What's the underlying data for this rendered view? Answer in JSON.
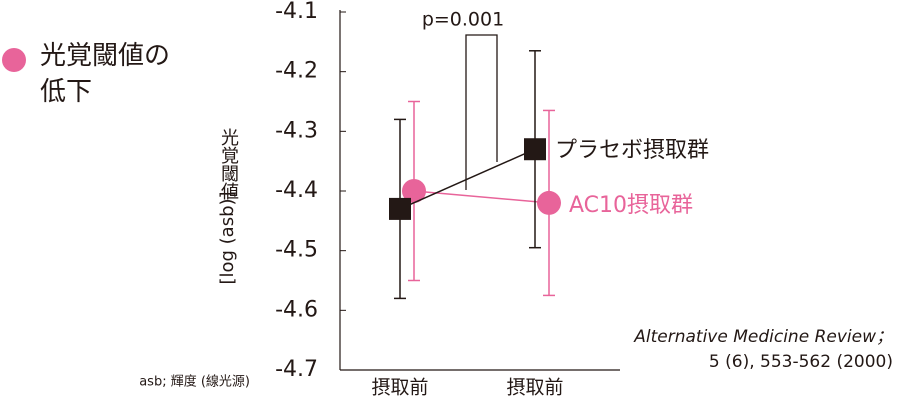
{
  "chart_data": {
    "type": "line",
    "title": "光覚閾値の低下",
    "ylabel_title": "光覚閾値",
    "ylabel": "[log (asb)]",
    "categories": [
      "摂取前",
      "摂取前"
    ],
    "series": [
      {
        "name": "プラセボ摂取群",
        "color": "#231815",
        "marker": "square",
        "values": [
          -4.43,
          -4.33
        ],
        "errors": [
          0.15,
          0.165
        ]
      },
      {
        "name": "AC10摂取群",
        "color": "#e8649a",
        "marker": "circle",
        "values": [
          -4.4,
          -4.42
        ],
        "errors": [
          0.15,
          0.155
        ]
      }
    ],
    "ylim": [
      -4.7,
      -4.1
    ],
    "yticks": [
      -4.1,
      -4.2,
      -4.3,
      -4.4,
      -4.5,
      -4.6,
      -4.7
    ],
    "annotation": "p=0.001",
    "note": "asb; 輝度 (線光源)",
    "source": [
      "Alternative Medicine Review；",
      "5 (6), 553-562 (2000)"
    ]
  }
}
